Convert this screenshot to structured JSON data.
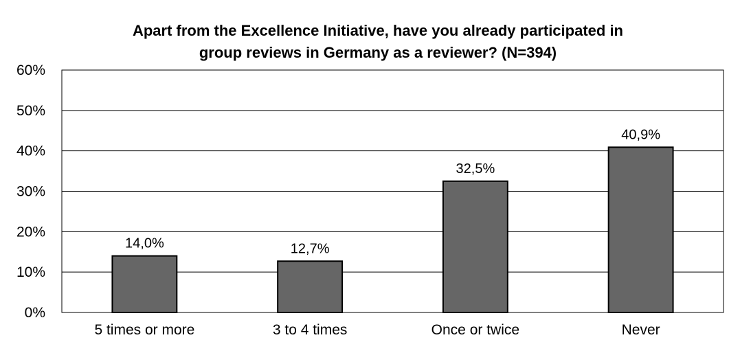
{
  "chart_data": {
    "type": "bar",
    "title_lines": [
      "Apart from the Excellence Initiative, have you already participated in",
      "group reviews in Germany as a reviewer? (N=394)"
    ],
    "categories": [
      "5 times or more",
      "3 to 4 times",
      "Once or twice",
      "Never"
    ],
    "values": [
      14.0,
      12.7,
      32.5,
      40.9
    ],
    "value_labels": [
      "14,0%",
      "12,7%",
      "32,5%",
      "40,9%"
    ],
    "y_ticks": [
      "0%",
      "10%",
      "20%",
      "30%",
      "40%",
      "50%",
      "60%"
    ],
    "ylim": [
      0,
      60
    ],
    "grid": true,
    "bar_color": "#666666",
    "grid_color": "#000000"
  }
}
